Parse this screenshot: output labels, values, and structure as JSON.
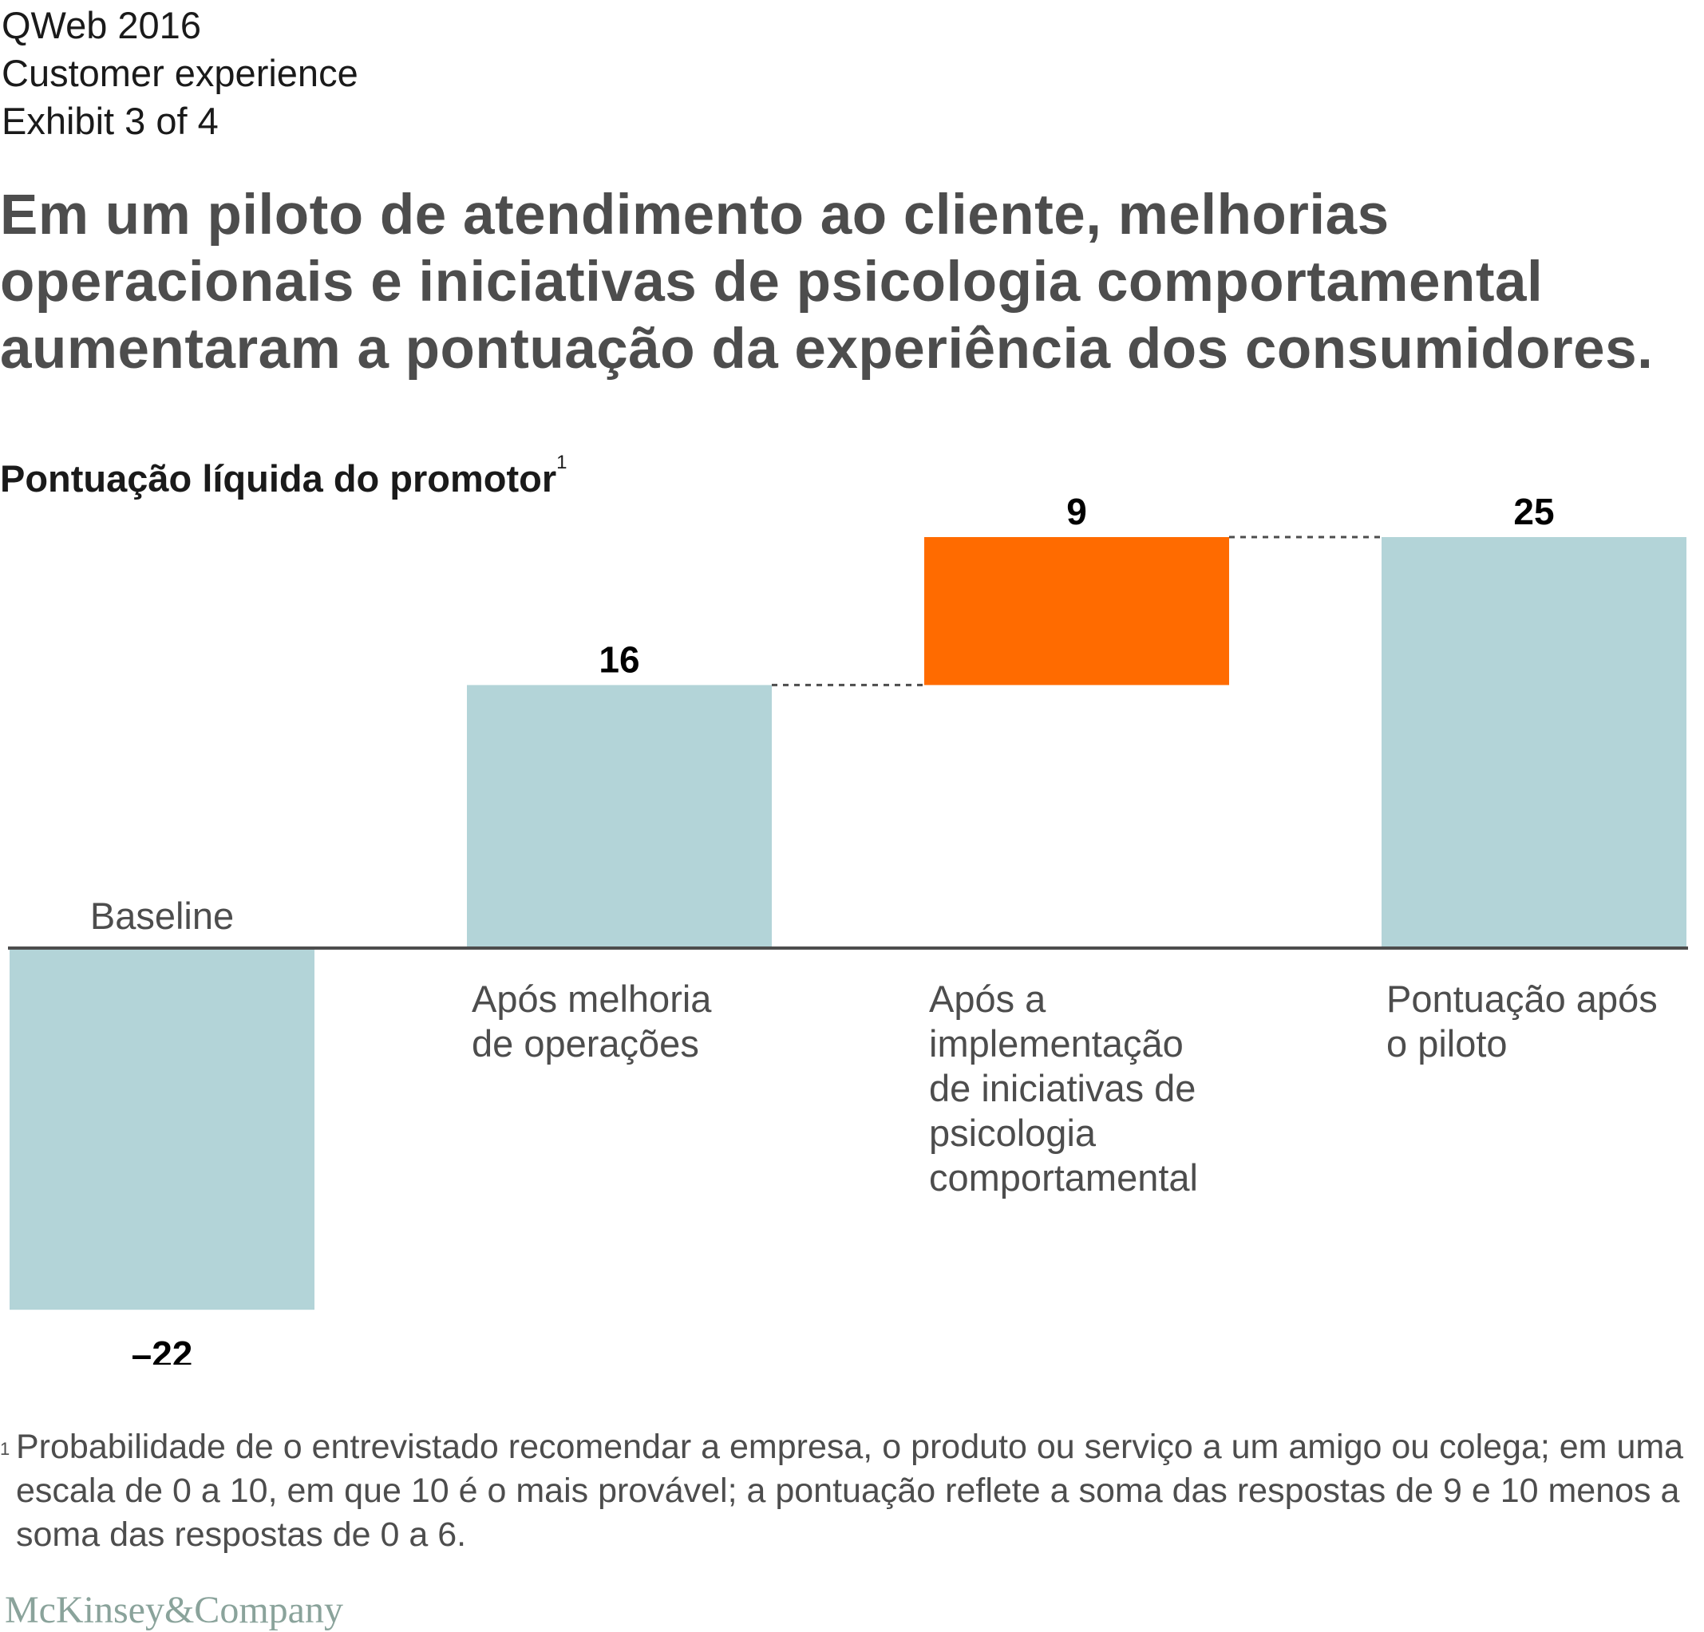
{
  "header": {
    "publication": "QWeb 2016",
    "section": "Customer experience",
    "exhibit": "Exhibit 3 of 4"
  },
  "headline": "Em um piloto de atendimento ao cliente, melhorias operacionais e iniciativas de psicologia comportamental aumentaram a pontuação da experiência dos consumidores.",
  "subtitle": {
    "text": "Pontuação líquida do promotor",
    "footnote_marker": "1"
  },
  "colors": {
    "bar_total": "#b3d4d8",
    "bar_increment": "#ff6b00",
    "axis": "#4d4d4d",
    "connector": "#4d4d4d",
    "category_label": "#4d4d4d",
    "value_label": "#000000"
  },
  "chart_data": {
    "type": "waterfall",
    "title": "Pontuação líquida do promotor",
    "baseline": 0,
    "bars": [
      {
        "label_lines": [
          "Baseline"
        ],
        "value_label": "–22",
        "start": 0,
        "end": -22,
        "kind": "total"
      },
      {
        "label_lines": [
          "Após melhoria",
          "de operações"
        ],
        "value_label": "16",
        "start": 0,
        "end": 16,
        "kind": "total"
      },
      {
        "label_lines": [
          "Após a",
          "implementação",
          "de iniciativas de",
          "psicologia",
          "comportamental"
        ],
        "value_label": "9",
        "start": 16,
        "end": 25,
        "kind": "increment"
      },
      {
        "label_lines": [
          "Pontuação após",
          "o piloto"
        ],
        "value_label": "25",
        "start": 0,
        "end": 25,
        "kind": "total"
      }
    ],
    "connectors": [
      {
        "from_bar": 1,
        "to_bar": 2,
        "value": 16
      },
      {
        "from_bar": 2,
        "to_bar": 3,
        "value": 25
      }
    ],
    "ylim": [
      -22,
      25
    ]
  },
  "footnote": {
    "marker": "1",
    "text": "Probabilidade de o entrevistado recomendar a empresa, o produto ou serviço a um amigo ou colega; em uma escala de 0 a 10, em que 10 é o mais provável; a pontuação reflete a soma das respostas de 9 e 10 menos a soma das respostas de 0 a 6."
  },
  "logo": "McKinsey&Company"
}
